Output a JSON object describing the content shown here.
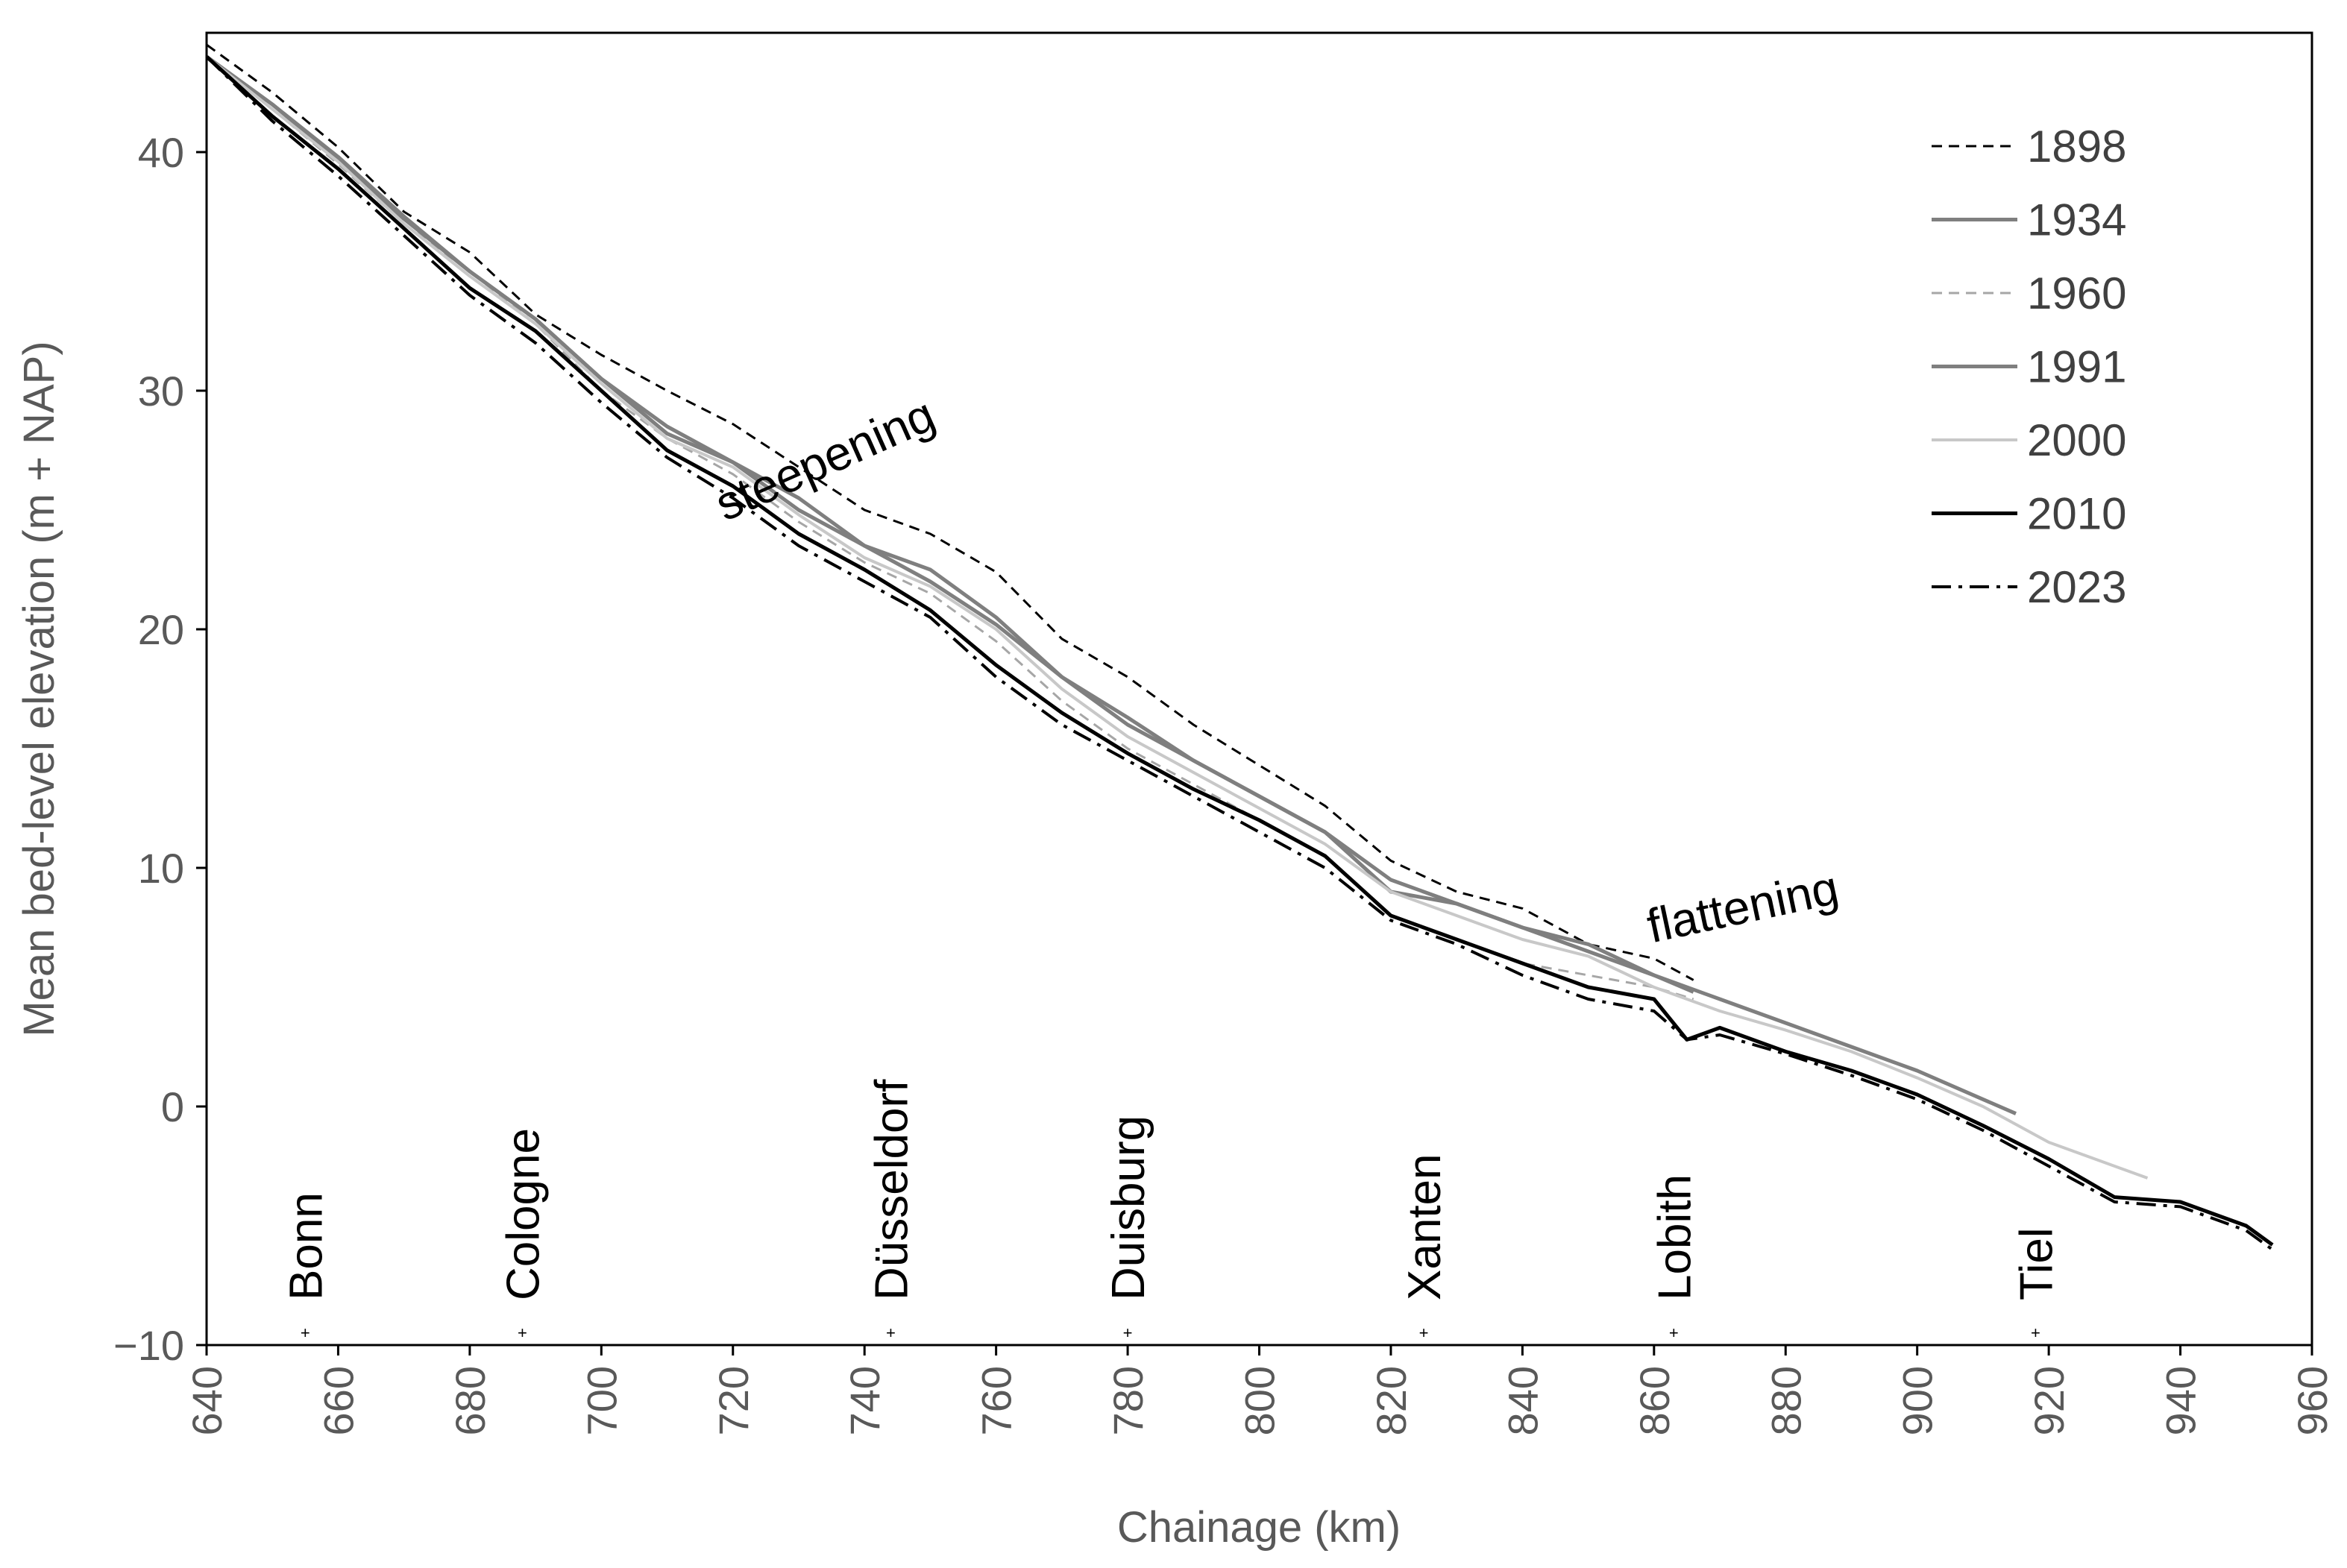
{
  "chart_data": {
    "type": "line",
    "title": "",
    "xlabel": "Chainage (km)",
    "ylabel": "Mean bed-level elevation (m + NAP)",
    "xlim": [
      640,
      960
    ],
    "ylim": [
      -10,
      45
    ],
    "x_ticks": [
      640,
      660,
      680,
      700,
      720,
      740,
      760,
      780,
      800,
      820,
      840,
      860,
      880,
      900,
      920,
      940,
      960
    ],
    "y_ticks": [
      {
        "value": 40,
        "label": "40"
      },
      {
        "value": 30,
        "label": "30"
      },
      {
        "value": 20,
        "label": "20"
      },
      {
        "value": 10,
        "label": "10"
      },
      {
        "value": 0,
        "label": "0"
      },
      {
        "value": -10,
        "label": "−10"
      }
    ],
    "grid": false,
    "legend_position": "top-right",
    "series": [
      {
        "name": "1898",
        "color": "#000000",
        "dash": "dashed",
        "x": [
          640,
          650,
          660,
          670,
          680,
          690,
          700,
          710,
          720,
          730,
          740,
          750,
          760,
          770,
          780,
          790,
          800,
          810,
          820,
          830,
          840,
          850,
          860,
          866
        ],
        "y": [
          44.5,
          42.5,
          40.2,
          37.5,
          35.8,
          33.2,
          31.5,
          30.0,
          28.6,
          26.8,
          25.0,
          24.0,
          22.4,
          19.6,
          18.0,
          16.0,
          14.3,
          12.6,
          10.3,
          9.0,
          8.3,
          6.8,
          6.2,
          5.3
        ]
      },
      {
        "name": "1934",
        "color": "#7f7f7f",
        "dash": "solid",
        "x": [
          640,
          650,
          660,
          670,
          680,
          690,
          700,
          710,
          720,
          730,
          740,
          750,
          760,
          770,
          780,
          790,
          800,
          810,
          820,
          830,
          840,
          850,
          860,
          866
        ],
        "y": [
          44.0,
          42.0,
          39.8,
          37.3,
          35.0,
          33.0,
          30.5,
          28.5,
          27.0,
          25.5,
          23.5,
          22.5,
          20.5,
          18.0,
          16.0,
          14.5,
          13.0,
          11.5,
          9.0,
          8.5,
          7.5,
          6.5,
          5.5,
          4.8
        ]
      },
      {
        "name": "1960",
        "color": "#a6a6a6",
        "dash": "dashed",
        "x": [
          640,
          650,
          660,
          670,
          680,
          690,
          700,
          710,
          720,
          730,
          740,
          750,
          760,
          770,
          780,
          790,
          800,
          810,
          820,
          830,
          840,
          850,
          860,
          866
        ],
        "y": [
          44.0,
          41.8,
          39.5,
          37.0,
          35.0,
          32.8,
          30.0,
          28.0,
          26.5,
          24.5,
          22.8,
          21.5,
          19.5,
          17.0,
          15.0,
          13.5,
          12.0,
          10.5,
          8.0,
          7.0,
          6.0,
          5.5,
          5.0,
          4.5
        ]
      },
      {
        "name": "1991",
        "color": "#7f7f7f",
        "dash": "solid",
        "x": [
          640,
          650,
          660,
          670,
          680,
          690,
          700,
          710,
          720,
          730,
          740,
          750,
          760,
          770,
          780,
          790,
          800,
          810,
          820,
          830,
          840,
          850,
          860,
          870,
          880,
          890,
          900,
          910,
          915
        ],
        "y": [
          44.0,
          42.0,
          39.7,
          37.2,
          35.0,
          33.0,
          30.5,
          28.2,
          27.0,
          25.0,
          23.5,
          22.0,
          20.2,
          18.0,
          16.3,
          14.5,
          13.0,
          11.5,
          9.5,
          8.5,
          7.5,
          6.8,
          5.5,
          4.5,
          3.5,
          2.5,
          1.5,
          0.3,
          -0.3
        ]
      },
      {
        "name": "2000",
        "color": "#c8c8c8",
        "dash": "solid",
        "x": [
          640,
          650,
          660,
          670,
          680,
          690,
          700,
          710,
          720,
          730,
          740,
          750,
          760,
          770,
          780,
          790,
          800,
          810,
          820,
          830,
          840,
          850,
          860,
          870,
          880,
          890,
          900,
          910,
          920,
          930,
          935
        ],
        "y": [
          44.0,
          41.8,
          39.6,
          37.0,
          34.8,
          32.8,
          30.3,
          28.0,
          26.8,
          24.8,
          23.0,
          21.8,
          20.0,
          17.5,
          15.5,
          14.0,
          12.5,
          11.0,
          9.0,
          8.0,
          7.0,
          6.3,
          5.0,
          4.0,
          3.2,
          2.3,
          1.2,
          0.0,
          -1.5,
          -2.5,
          -3.0
        ]
      },
      {
        "name": "2010",
        "color": "#000000",
        "dash": "solid",
        "x": [
          640,
          650,
          660,
          670,
          680,
          690,
          700,
          710,
          720,
          730,
          740,
          750,
          760,
          770,
          780,
          790,
          800,
          810,
          820,
          830,
          840,
          850,
          860,
          865,
          870,
          880,
          890,
          900,
          910,
          920,
          930,
          940,
          950,
          954
        ],
        "y": [
          44.0,
          41.5,
          39.3,
          36.8,
          34.3,
          32.5,
          30.0,
          27.5,
          26.0,
          24.0,
          22.5,
          20.8,
          18.5,
          16.5,
          14.8,
          13.3,
          12.0,
          10.5,
          8.0,
          7.0,
          6.0,
          5.0,
          4.5,
          2.8,
          3.3,
          2.3,
          1.5,
          0.5,
          -0.8,
          -2.2,
          -3.8,
          -4.0,
          -5.0,
          -5.8
        ]
      },
      {
        "name": "2023",
        "color": "#000000",
        "dash": "dashdot",
        "x": [
          640,
          650,
          660,
          670,
          680,
          690,
          700,
          710,
          720,
          730,
          740,
          750,
          760,
          770,
          780,
          790,
          800,
          810,
          820,
          830,
          840,
          850,
          860,
          865,
          870,
          880,
          890,
          900,
          910,
          920,
          930,
          940,
          950,
          954
        ],
        "y": [
          44.0,
          41.3,
          39.0,
          36.5,
          34.0,
          32.0,
          29.5,
          27.2,
          25.5,
          23.5,
          22.0,
          20.5,
          18.0,
          16.0,
          14.5,
          13.0,
          11.5,
          10.0,
          7.8,
          6.8,
          5.5,
          4.5,
          4.0,
          2.8,
          3.0,
          2.2,
          1.3,
          0.3,
          -1.0,
          -2.5,
          -4.0,
          -4.2,
          -5.2,
          -6.0
        ]
      }
    ],
    "annotations": [
      {
        "text": "steepening",
        "x": 735,
        "y": 26.5,
        "angle": -24
      },
      {
        "text": "flattening",
        "x": 874,
        "y": 7.7,
        "angle": -12
      }
    ],
    "locations": [
      {
        "name": "Bonn",
        "km": 655
      },
      {
        "name": "Cologne",
        "km": 688
      },
      {
        "name": "Düsseldorf",
        "km": 744
      },
      {
        "name": "Duisburg",
        "km": 780
      },
      {
        "name": "Xanten",
        "km": 825
      },
      {
        "name": "Lobith",
        "km": 863
      },
      {
        "name": "Tiel",
        "km": 918
      }
    ]
  }
}
